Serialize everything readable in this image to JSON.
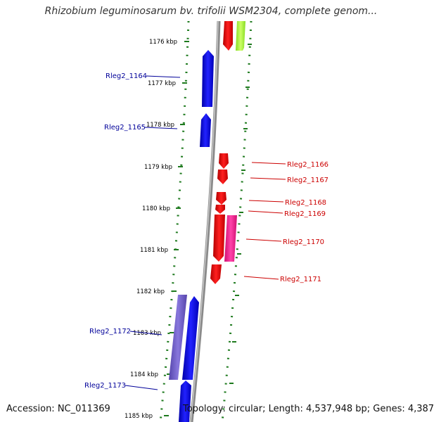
{
  "title": "Rhizobium leguminosarum bv. trifolii WSM2304, complete genom...",
  "footer": {
    "accession": "Accession: NC_011369",
    "summary": "Topology: circular; Length: 4,537,948 bp; Genes: 4,387"
  },
  "axis": {
    "ticks": [
      "1176 kbp",
      "1177 kbp",
      "1178 kbp",
      "1179 kbp",
      "1180 kbp",
      "1181 kbp",
      "1182 kbp",
      "1183 kbp",
      "1184 kbp",
      "1185 kbp"
    ]
  },
  "genes_left": [
    "Rleg2_1164",
    "Rleg2_1165",
    "Rleg2_1172",
    "Rleg2_1173"
  ],
  "genes_right": [
    "Rleg2_1166",
    "Rleg2_1167",
    "Rleg2_1168",
    "Rleg2_1169",
    "Rleg2_1170",
    "Rleg2_1171"
  ],
  "colors": {
    "backbone": "#8a8a8a",
    "dots": "#1e7a1e",
    "forward_gene": "#ee0000",
    "reverse_gene": "#0000ee",
    "pink_gene": "#ff3399",
    "purple_gene": "#7766cc",
    "lime_gene": "#aaff44",
    "left_label": "#000099",
    "right_label": "#cc0000"
  }
}
